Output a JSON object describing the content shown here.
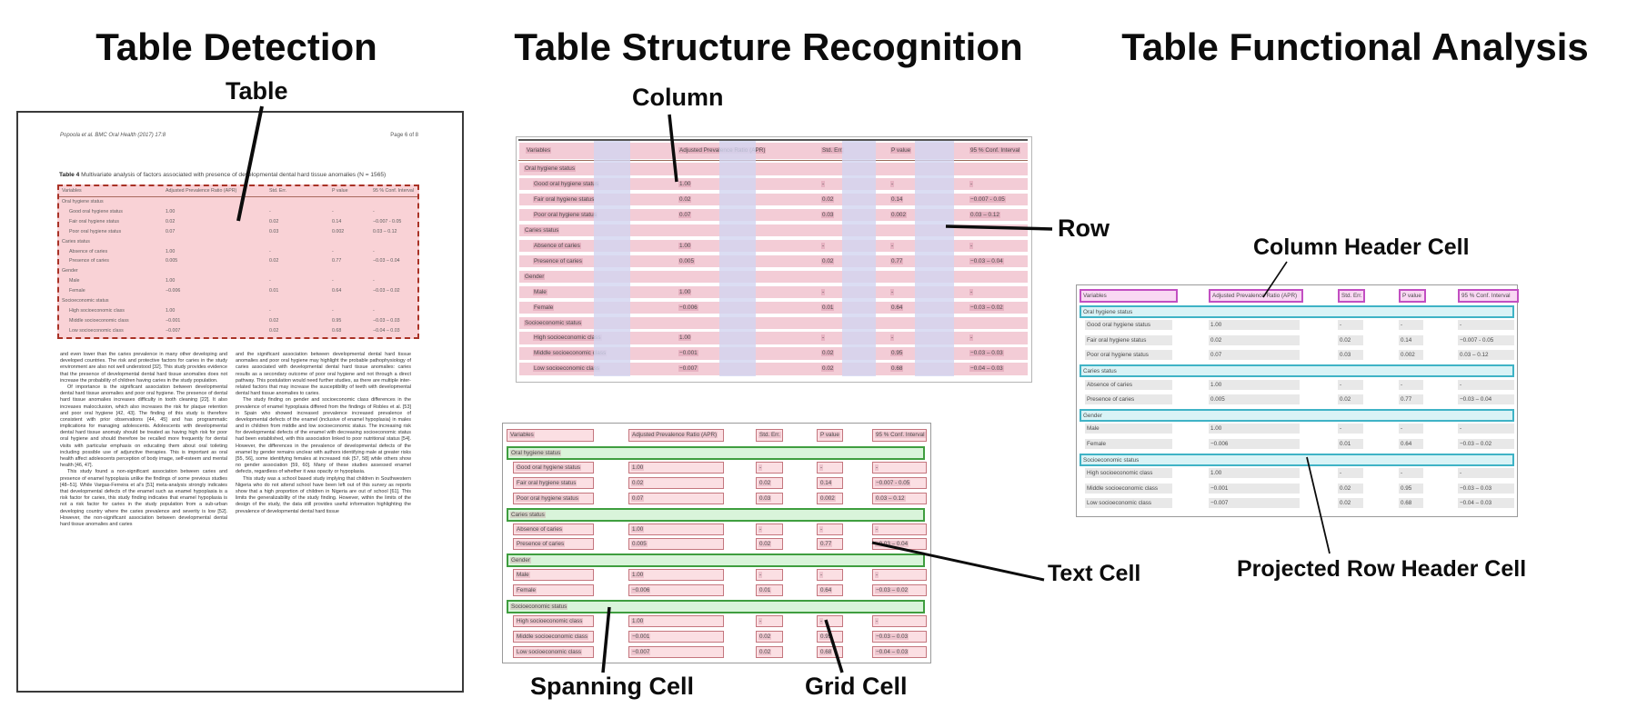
{
  "panels": {
    "detection": {
      "title": "Table Detection",
      "callouts": {
        "table": "Table"
      }
    },
    "structure": {
      "title": "Table Structure Recognition",
      "callouts": {
        "column": "Column",
        "row": "Row",
        "spanning_cell": "Spanning Cell",
        "text_cell": "Text Cell",
        "grid_cell": "Grid Cell"
      }
    },
    "functional": {
      "title": "Table Functional Analysis",
      "callouts": {
        "column_header_cell": "Column Header Cell",
        "projected_row_header_cell": "Projected Row Header Cell"
      }
    }
  },
  "document": {
    "running_header_left": "Popoola et al. BMC Oral Health  (2017) 17:8",
    "running_header_right": "Page 6 of 8",
    "table_caption_label": "Table 4",
    "table_caption_text": " Multivariate analysis of factors associated with presence of developmental dental hard tissue anomalies (N = 1565)",
    "body_left": [
      "and even lower than the caries prevalence in many other developing and developed countries. The risk and protective factors for caries in the study environment are also not well understood [32]. This study provides evidence that the presence of developmental dental hard tissue anomalies does not increase the probability of children having caries in the study population.",
      "Of importance is the significant association between developmental dental hard tissue anomalies and poor oral hygiene. The presence of dental hard tissue anomalies increases difficulty in tooth cleaning [22]. It also increases malocclusion, which also increases the risk for plaque retention and poor oral hygiene [42, 43]. The finding of this study is therefore consistent with prior observations [44, 45] and has programmatic implications for managing adolescents. Adolescents with developmental dental hard tissue anomaly should be treated as having high risk for poor oral hygiene and should therefore be recalled more frequently for dental visits with particular emphasis on educating them about oral toileting including possible use of adjunctive therapies. This is important as oral health affect adolescents perception of body image, self-esteem and mental health [46, 47].",
      "This study found a non-significant association between caries and presence of enamel hypoplasia unlike the findings of some previous studies [48–51]. While Vargas-Ferreira et al's [51] meta-analysis strongly indicates that developmental defects of the enamel such as enamel hypoplasia is a risk factor for caries, this study finding indicates that enamel hypoplasia is not a risk factor for caries in the study population from a sub-urban developing country where the caries prevalence and severity is low [52]. However, the non-significant association between developmental dental hard tissue anomalies and caries"
    ],
    "body_right": [
      "and the significant association between developmental dental hard tissue anomalies and poor oral hygiene may highlight the probable pathophysiology of caries associated with developmental dental hard tissue anomalies: caries results as a secondary outcome of poor oral hygiene and not through a direct pathway. This postulation would need further studies, as there are multiple inter-related factors that may increase the susceptibility of teeth with developmental dental hard tissue anomalies to caries.",
      "The study finding on gender and socioeconomic class differences in the prevalence of enamel hypoplasia differed from the findings of Robles et al. [53] in Spain who showed increased prevalence increased prevalence of developmental defects of the enamel (inclusive of enamel hypoplasia) in males and in children from middle and low socioeconomic status. The increasing risk for developmental defects of the enamel with decreasing socioeconomic status had been established, with this association linked to poor nutritional status [54]. However, the differences in the prevalence of developmental defects of the enamel by gender remains unclear with authors identifying male at greater risks [55, 56], some identifying females at increased risk [57, 58] while others show no gender association [59, 60]. Many of these studies assessed enamel defects, regardless of whether it was opacity or hypoplasia.",
      "This study was a school based study implying that children in Southwestern Nigeria who do not attend school have been left out of this survey as reports show that a high proportion of children in Nigeria are out of school [61]. This limits the generalizability of the study finding. However, within the limits of the design of the study, the data still provides useful information highlighting the prevalence of developmental dental hard tissue"
    ]
  },
  "table": {
    "columns": [
      "Variables",
      "Adjusted Prevalence Ratio (APR)",
      "Std. Err.",
      "P value",
      "95 % Conf. Interval"
    ],
    "rows": [
      {
        "type": "section",
        "label": "Oral hygiene status"
      },
      {
        "type": "data",
        "cells": [
          "Good oral hygiene status",
          "1.00",
          "-",
          "-",
          "-"
        ]
      },
      {
        "type": "data",
        "cells": [
          "Fair oral hygiene status",
          "0.02",
          "0.02",
          "0.14",
          "−0.007 - 0.05"
        ]
      },
      {
        "type": "data",
        "cells": [
          "Poor oral hygiene status",
          "0.07",
          "0.03",
          "0.002",
          "0.03 – 0.12"
        ]
      },
      {
        "type": "section",
        "label": "Caries status"
      },
      {
        "type": "data",
        "cells": [
          "Absence of caries",
          "1.00",
          "-",
          "-",
          "-"
        ]
      },
      {
        "type": "data",
        "cells": [
          "Presence of caries",
          "0.005",
          "0.02",
          "0.77",
          "−0.03 – 0.04"
        ]
      },
      {
        "type": "section",
        "label": "Gender"
      },
      {
        "type": "data",
        "cells": [
          "Male",
          "1.00",
          "-",
          "-",
          "-"
        ]
      },
      {
        "type": "data",
        "cells": [
          "Female",
          "−0.006",
          "0.01",
          "0.64",
          "−0.03 – 0.02"
        ]
      },
      {
        "type": "section",
        "label": "Socioeconomic status"
      },
      {
        "type": "data",
        "cells": [
          "High socioeconomic class",
          "1.00",
          "-",
          "-",
          "-"
        ]
      },
      {
        "type": "data",
        "cells": [
          "Middle socioeconomic class",
          "−0.001",
          "0.02",
          "0.95",
          "−0.03 – 0.03"
        ]
      },
      {
        "type": "data",
        "cells": [
          "Low socioeconomic class",
          "−0.007",
          "0.02",
          "0.68",
          "−0.04 – 0.03"
        ]
      }
    ]
  },
  "colors": {
    "detection_fill": "#f9d2d6",
    "detection_border": "#a93226",
    "row_band_pink": "#f3ccd6",
    "column_stripe_lavender": "#d2d4f0",
    "grid_cell_fill": "#fbdfe3",
    "grid_cell_border": "#c4767e",
    "text_highlight_pink": "#edc4cd",
    "spanning_cell_fill": "#d9f4da",
    "spanning_cell_border": "#3f9e3f",
    "column_header_fill": "#f9d8f3",
    "column_header_border": "#c24fc2",
    "projected_header_fill": "#d9f3f6",
    "projected_header_border": "#3fb3c6",
    "gray_highlight": "#e8e8e8"
  }
}
